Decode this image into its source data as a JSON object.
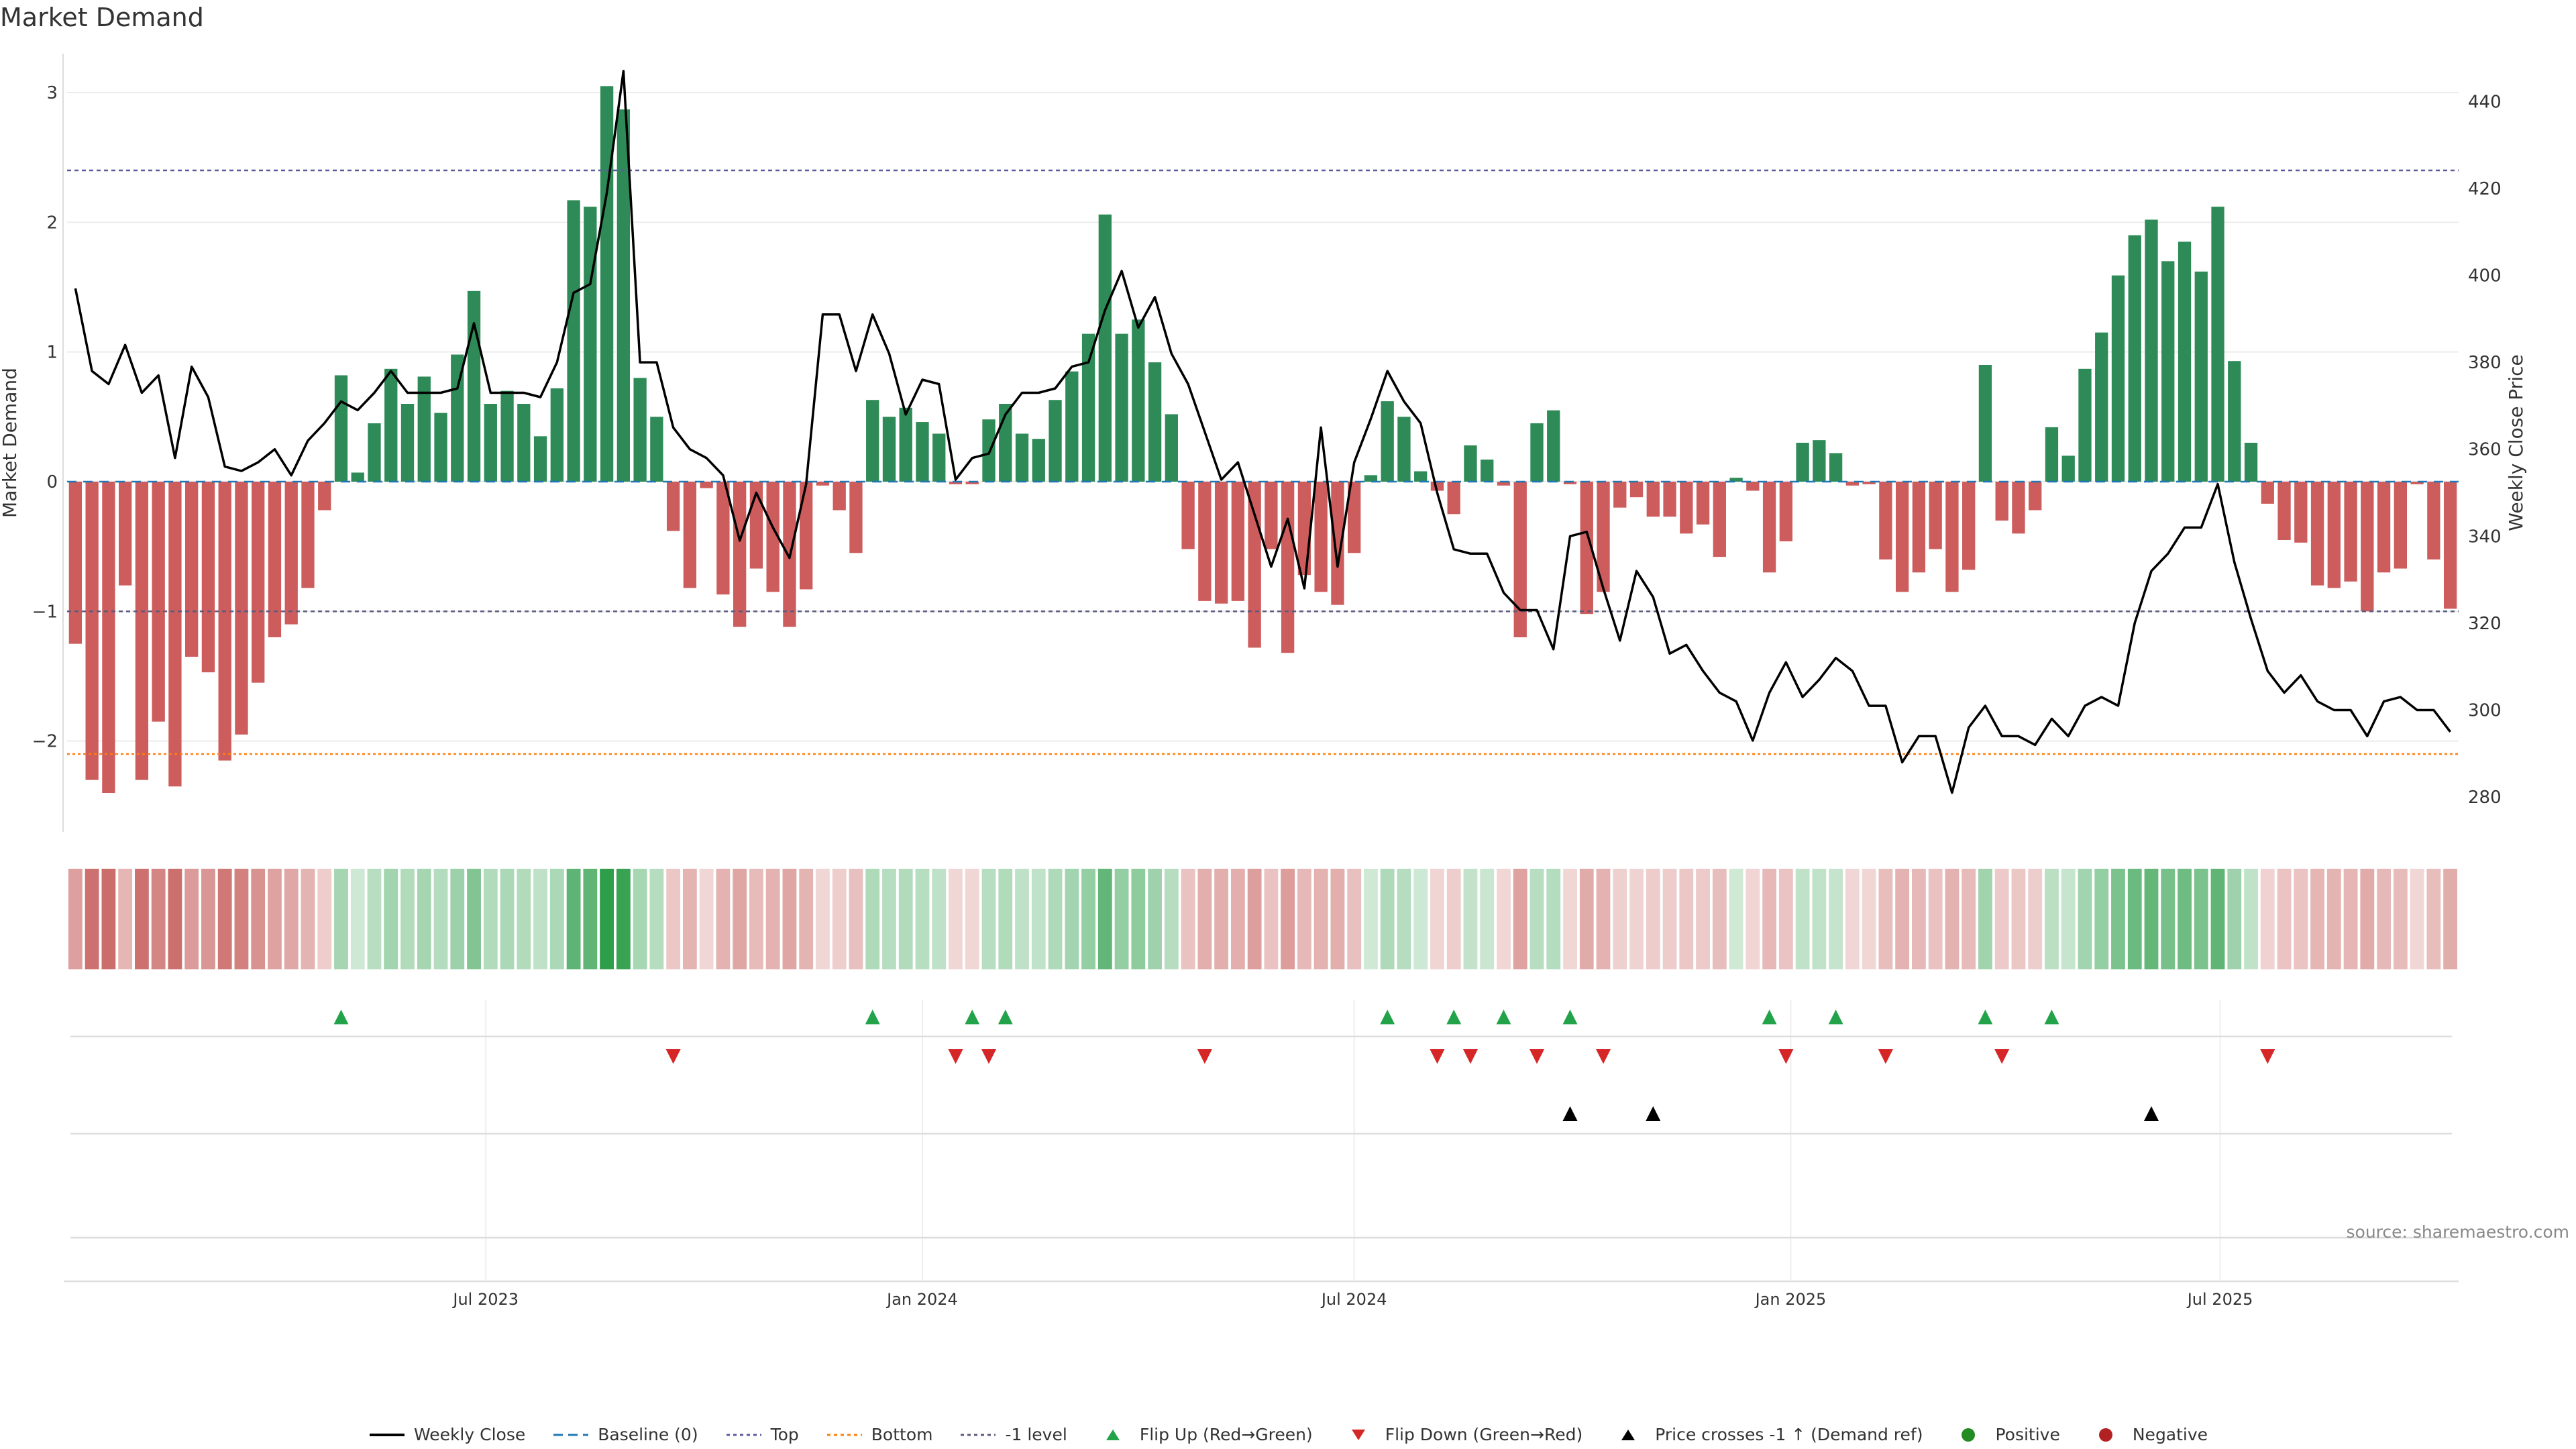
{
  "chart_data": {
    "type": "bar",
    "title": "Market Demand",
    "ylabel": "Market Demand",
    "y2label": "Weekly Close Price",
    "ylim": [
      -2.7,
      3.3
    ],
    "y2lim": [
      272,
      451
    ],
    "yticks": [
      3,
      2,
      1,
      0,
      -1,
      -2
    ],
    "y2ticks": [
      440,
      420,
      400,
      380,
      360,
      340,
      320,
      300,
      280
    ],
    "x_tick_labels": [
      "Jul 2023",
      "Jan 2024",
      "Jul 2024",
      "Jan 2025",
      "Jul 2025"
    ],
    "x_tick_dates": [
      "2023-07-01",
      "2024-01-01",
      "2024-07-01",
      "2025-01-01",
      "2025-07-01"
    ],
    "week_start": "2023-01-09",
    "reference_lines": {
      "top": 2.4,
      "bottom": -2.1,
      "minus_one": -1,
      "baseline": 0
    },
    "demand": [
      -1.25,
      -2.3,
      -2.4,
      -0.8,
      -2.3,
      -1.85,
      -2.35,
      -1.35,
      -1.47,
      -2.15,
      -1.95,
      -1.55,
      -1.2,
      -1.1,
      -0.82,
      -0.22,
      0.82,
      0.07,
      0.45,
      0.87,
      0.6,
      0.81,
      0.53,
      0.98,
      1.47,
      0.6,
      0.7,
      0.6,
      0.35,
      0.72,
      2.17,
      2.12,
      3.05,
      2.87,
      0.8,
      0.5,
      -0.38,
      -0.82,
      -0.05,
      -0.87,
      -1.12,
      -0.67,
      -0.85,
      -1.12,
      -0.83,
      -0.03,
      -0.22,
      -0.55,
      0.63,
      0.5,
      0.57,
      0.46,
      0.37,
      -0.02,
      -0.02,
      0.48,
      0.6,
      0.37,
      0.33,
      0.63,
      0.85,
      1.14,
      2.06,
      1.14,
      1.25,
      0.92,
      0.52,
      -0.52,
      -0.92,
      -0.94,
      -0.92,
      -1.28,
      -0.52,
      -1.32,
      -0.72,
      -0.85,
      -0.95,
      -0.55,
      0.05,
      0.62,
      0.5,
      0.08,
      -0.07,
      -0.25,
      0.28,
      0.17,
      -0.03,
      -1.2,
      0.45,
      0.55,
      -0.02,
      -1.02,
      -0.85,
      -0.2,
      -0.12,
      -0.27,
      -0.27,
      -0.4,
      -0.33,
      -0.58,
      0.03,
      -0.07,
      -0.7,
      -0.46,
      0.3,
      0.32,
      0.22,
      -0.03,
      -0.02,
      -0.6,
      -0.85,
      -0.7,
      -0.52,
      -0.85,
      -0.68,
      0.9,
      -0.3,
      -0.4,
      -0.22,
      0.42,
      0.2,
      0.87,
      1.15,
      1.59,
      1.9,
      2.02,
      1.7,
      1.85,
      1.62,
      2.12,
      0.93,
      0.3,
      -0.17,
      -0.45,
      -0.47,
      -0.8,
      -0.82,
      -0.77,
      -1.0,
      -0.7,
      -0.67,
      -0.02,
      -0.6,
      -0.98
    ],
    "weekly_close": [
      397,
      378,
      375,
      384,
      373,
      377,
      358,
      379,
      372,
      356,
      355,
      357,
      360,
      354,
      362,
      366,
      371,
      369,
      373,
      378,
      373,
      373,
      373,
      374,
      389,
      373,
      373,
      373,
      372,
      380,
      396,
      398,
      419,
      447,
      380,
      380,
      365,
      360,
      358,
      354,
      339,
      350,
      342,
      335,
      352,
      391,
      391,
      378,
      391,
      382,
      368,
      376,
      375,
      353,
      358,
      359,
      368,
      373,
      373,
      374,
      379,
      380,
      392,
      401,
      388,
      395,
      382,
      375,
      364,
      353,
      357,
      345,
      333,
      344,
      328,
      365,
      333,
      357,
      367,
      378,
      371,
      366,
      350,
      337,
      336,
      336,
      327,
      323,
      323,
      314,
      340,
      341,
      328,
      316,
      332,
      326,
      313,
      315,
      309,
      304,
      302,
      293,
      304,
      311,
      303,
      307,
      312,
      309,
      301,
      301,
      288,
      294,
      294,
      281,
      296,
      301,
      294,
      294,
      292,
      298,
      294,
      301,
      303,
      301,
      320,
      332,
      336,
      342,
      342,
      352,
      334,
      321,
      309,
      304,
      308,
      302,
      300,
      300,
      294,
      302,
      303,
      300,
      300,
      295
    ],
    "bar_colors": {
      "positive": "#2e8b57",
      "negative": "#cd5c5c"
    },
    "heat_colors": {
      "positive": "#2e9e4a",
      "negative": "#c0504d"
    },
    "flip_up": [
      16,
      48,
      54,
      56,
      79,
      83,
      86,
      90,
      102,
      106,
      115,
      119
    ],
    "flip_down": [
      36,
      53,
      55,
      68,
      82,
      84,
      88,
      92,
      103,
      109,
      116,
      132
    ],
    "price_crosses": [
      90,
      95,
      125
    ],
    "event_colors": {
      "flip_up": "#22a34a",
      "flip_down": "#d62728",
      "price_cross": "#000000"
    },
    "legend": [
      {
        "key": "weekly",
        "label": "Weekly Close",
        "color": "#000000"
      },
      {
        "key": "baseline",
        "label": "Baseline (0)",
        "color": "#1f77b4"
      },
      {
        "key": "top",
        "label": "Top",
        "color": "#5b5b9e"
      },
      {
        "key": "bottom",
        "label": "Bottom",
        "color": "#ff7f0e"
      },
      {
        "key": "minus1",
        "label": "-1 level",
        "color": "#5b5b7e"
      },
      {
        "key": "flipup",
        "label": "Flip Up (Red→Green)",
        "color": "#22a34a"
      },
      {
        "key": "flipdown",
        "label": "Flip Down (Green→Red)",
        "color": "#d62728"
      },
      {
        "key": "cross",
        "label": "Price crosses -1 ↑ (Demand ref)",
        "color": "#000000"
      },
      {
        "key": "pos",
        "label": "Positive",
        "color": "#228b22"
      },
      {
        "key": "neg",
        "label": "Negative",
        "color": "#b22222"
      }
    ],
    "source": "source: sharemaestro.com"
  }
}
